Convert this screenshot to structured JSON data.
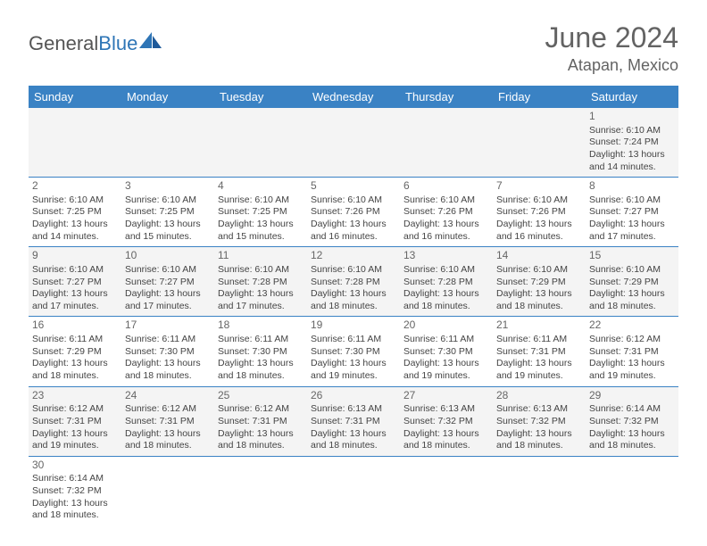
{
  "brand": {
    "part1": "General",
    "part2": "Blue"
  },
  "title": "June 2024",
  "location": "Atapan, Mexico",
  "colors": {
    "header_bg": "#3a82c4",
    "header_text": "#ffffff",
    "title_text": "#636363",
    "body_text": "#444444",
    "row_alt_bg": "#f4f4f4",
    "row_bg": "#ffffff",
    "border": "#3a82c4",
    "brand_blue": "#2e75b6"
  },
  "daysOfWeek": [
    "Sunday",
    "Monday",
    "Tuesday",
    "Wednesday",
    "Thursday",
    "Friday",
    "Saturday"
  ],
  "weeks": [
    [
      null,
      null,
      null,
      null,
      null,
      null,
      {
        "n": "1",
        "sunrise": "6:10 AM",
        "sunset": "7:24 PM",
        "day_h": "13",
        "day_m": "14"
      }
    ],
    [
      {
        "n": "2",
        "sunrise": "6:10 AM",
        "sunset": "7:25 PM",
        "day_h": "13",
        "day_m": "14"
      },
      {
        "n": "3",
        "sunrise": "6:10 AM",
        "sunset": "7:25 PM",
        "day_h": "13",
        "day_m": "15"
      },
      {
        "n": "4",
        "sunrise": "6:10 AM",
        "sunset": "7:25 PM",
        "day_h": "13",
        "day_m": "15"
      },
      {
        "n": "5",
        "sunrise": "6:10 AM",
        "sunset": "7:26 PM",
        "day_h": "13",
        "day_m": "16"
      },
      {
        "n": "6",
        "sunrise": "6:10 AM",
        "sunset": "7:26 PM",
        "day_h": "13",
        "day_m": "16"
      },
      {
        "n": "7",
        "sunrise": "6:10 AM",
        "sunset": "7:26 PM",
        "day_h": "13",
        "day_m": "16"
      },
      {
        "n": "8",
        "sunrise": "6:10 AM",
        "sunset": "7:27 PM",
        "day_h": "13",
        "day_m": "17"
      }
    ],
    [
      {
        "n": "9",
        "sunrise": "6:10 AM",
        "sunset": "7:27 PM",
        "day_h": "13",
        "day_m": "17"
      },
      {
        "n": "10",
        "sunrise": "6:10 AM",
        "sunset": "7:27 PM",
        "day_h": "13",
        "day_m": "17"
      },
      {
        "n": "11",
        "sunrise": "6:10 AM",
        "sunset": "7:28 PM",
        "day_h": "13",
        "day_m": "17"
      },
      {
        "n": "12",
        "sunrise": "6:10 AM",
        "sunset": "7:28 PM",
        "day_h": "13",
        "day_m": "18"
      },
      {
        "n": "13",
        "sunrise": "6:10 AM",
        "sunset": "7:28 PM",
        "day_h": "13",
        "day_m": "18"
      },
      {
        "n": "14",
        "sunrise": "6:10 AM",
        "sunset": "7:29 PM",
        "day_h": "13",
        "day_m": "18"
      },
      {
        "n": "15",
        "sunrise": "6:10 AM",
        "sunset": "7:29 PM",
        "day_h": "13",
        "day_m": "18"
      }
    ],
    [
      {
        "n": "16",
        "sunrise": "6:11 AM",
        "sunset": "7:29 PM",
        "day_h": "13",
        "day_m": "18"
      },
      {
        "n": "17",
        "sunrise": "6:11 AM",
        "sunset": "7:30 PM",
        "day_h": "13",
        "day_m": "18"
      },
      {
        "n": "18",
        "sunrise": "6:11 AM",
        "sunset": "7:30 PM",
        "day_h": "13",
        "day_m": "18"
      },
      {
        "n": "19",
        "sunrise": "6:11 AM",
        "sunset": "7:30 PM",
        "day_h": "13",
        "day_m": "19"
      },
      {
        "n": "20",
        "sunrise": "6:11 AM",
        "sunset": "7:30 PM",
        "day_h": "13",
        "day_m": "19"
      },
      {
        "n": "21",
        "sunrise": "6:11 AM",
        "sunset": "7:31 PM",
        "day_h": "13",
        "day_m": "19"
      },
      {
        "n": "22",
        "sunrise": "6:12 AM",
        "sunset": "7:31 PM",
        "day_h": "13",
        "day_m": "19"
      }
    ],
    [
      {
        "n": "23",
        "sunrise": "6:12 AM",
        "sunset": "7:31 PM",
        "day_h": "13",
        "day_m": "19"
      },
      {
        "n": "24",
        "sunrise": "6:12 AM",
        "sunset": "7:31 PM",
        "day_h": "13",
        "day_m": "18"
      },
      {
        "n": "25",
        "sunrise": "6:12 AM",
        "sunset": "7:31 PM",
        "day_h": "13",
        "day_m": "18"
      },
      {
        "n": "26",
        "sunrise": "6:13 AM",
        "sunset": "7:31 PM",
        "day_h": "13",
        "day_m": "18"
      },
      {
        "n": "27",
        "sunrise": "6:13 AM",
        "sunset": "7:32 PM",
        "day_h": "13",
        "day_m": "18"
      },
      {
        "n": "28",
        "sunrise": "6:13 AM",
        "sunset": "7:32 PM",
        "day_h": "13",
        "day_m": "18"
      },
      {
        "n": "29",
        "sunrise": "6:14 AM",
        "sunset": "7:32 PM",
        "day_h": "13",
        "day_m": "18"
      }
    ],
    [
      {
        "n": "30",
        "sunrise": "6:14 AM",
        "sunset": "7:32 PM",
        "day_h": "13",
        "day_m": "18"
      },
      null,
      null,
      null,
      null,
      null,
      null
    ]
  ]
}
